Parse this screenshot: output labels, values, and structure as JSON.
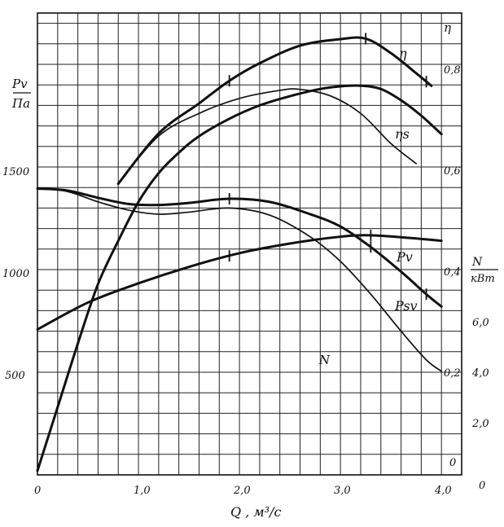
{
  "chart_data": {
    "type": "line",
    "xlabel": "Q , м³/с",
    "x_ticks": [
      "0",
      "1,0",
      "2,0",
      "3,0",
      "4,0"
    ],
    "xlim": [
      0,
      4.2
    ],
    "left_axis": {
      "label_top": "Pv",
      "label_bottom": "Па",
      "ticks": [
        "500",
        "1000",
        "1500"
      ],
      "ylim": [
        0,
        2250
      ]
    },
    "eff_axis": {
      "label": "η",
      "ticks": [
        "0",
        "0,2",
        "0,4",
        "0,6",
        "0,8"
      ],
      "ylim": [
        -0.02,
        0.9
      ]
    },
    "power_axis": {
      "label_top": "N",
      "label_bottom": "кВт",
      "ticks": [
        "0",
        "2,0",
        "4,0",
        "6,0"
      ],
      "ylim": [
        -4.48,
        12.35
      ]
    },
    "grid": true,
    "series": [
      {
        "name": "η",
        "axis": "eff",
        "weight": "heavy",
        "points": [
          [
            0.8,
            0.56
          ],
          [
            1.2,
            0.66
          ],
          [
            1.6,
            0.72
          ],
          [
            1.9,
            0.765
          ],
          [
            2.2,
            0.8
          ],
          [
            2.6,
            0.835
          ],
          [
            3.0,
            0.848
          ],
          [
            3.25,
            0.849
          ],
          [
            3.5,
            0.82
          ],
          [
            3.75,
            0.78
          ],
          [
            3.9,
            0.755
          ]
        ],
        "marks": [
          1.9,
          3.25,
          3.85
        ]
      },
      {
        "name": "ηs",
        "axis": "eff",
        "weight": "light",
        "points": [
          [
            0.8,
            0.56
          ],
          [
            1.2,
            0.655
          ],
          [
            1.6,
            0.7
          ],
          [
            2.0,
            0.73
          ],
          [
            2.4,
            0.746
          ],
          [
            2.6,
            0.748
          ],
          [
            2.9,
            0.735
          ],
          [
            3.2,
            0.7
          ],
          [
            3.5,
            0.64
          ],
          [
            3.75,
            0.6
          ]
        ],
        "marks": []
      },
      {
        "name": "Pv",
        "axis": "pressure",
        "weight": "heavy",
        "points": [
          [
            0,
            1395
          ],
          [
            0.3,
            1385
          ],
          [
            0.6,
            1350
          ],
          [
            0.9,
            1320
          ],
          [
            1.2,
            1315
          ],
          [
            1.5,
            1325
          ],
          [
            1.9,
            1345
          ],
          [
            2.3,
            1330
          ],
          [
            2.7,
            1270
          ],
          [
            3.0,
            1210
          ],
          [
            3.3,
            1110
          ],
          [
            3.6,
            990
          ],
          [
            3.85,
            880
          ],
          [
            4.0,
            820
          ]
        ],
        "marks": [
          1.9,
          3.3,
          3.85
        ]
      },
      {
        "name": "Psv",
        "axis": "pressure",
        "weight": "light",
        "points": [
          [
            0,
            1395
          ],
          [
            0.3,
            1380
          ],
          [
            0.6,
            1330
          ],
          [
            0.9,
            1290
          ],
          [
            1.2,
            1270
          ],
          [
            1.5,
            1280
          ],
          [
            1.9,
            1300
          ],
          [
            2.3,
            1265
          ],
          [
            2.7,
            1160
          ],
          [
            3.0,
            1040
          ],
          [
            3.3,
            880
          ],
          [
            3.6,
            700
          ],
          [
            3.85,
            560
          ],
          [
            4.0,
            505
          ]
        ],
        "marks": []
      },
      {
        "name": "N",
        "axis": "power",
        "weight": "heavy",
        "points": [
          [
            0,
            0.82
          ],
          [
            0.5,
            1.8
          ],
          [
            1.0,
            2.5
          ],
          [
            1.5,
            3.1
          ],
          [
            2.0,
            3.6
          ],
          [
            2.5,
            3.95
          ],
          [
            3.0,
            4.2
          ],
          [
            3.3,
            4.25
          ],
          [
            3.7,
            4.15
          ],
          [
            4.0,
            4.05
          ]
        ],
        "marks": [
          1.9,
          3.3
        ]
      },
      {
        "name": "",
        "axis": "pressure",
        "weight": "heavy",
        "points": [
          [
            0,
            20
          ],
          [
            0.2,
            330
          ],
          [
            0.4,
            640
          ],
          [
            0.6,
            930
          ],
          [
            0.8,
            1140
          ],
          [
            1.0,
            1330
          ],
          [
            1.2,
            1470
          ],
          [
            1.4,
            1570
          ],
          [
            1.6,
            1650
          ],
          [
            1.9,
            1735
          ],
          [
            2.2,
            1800
          ],
          [
            2.5,
            1845
          ],
          [
            2.8,
            1880
          ],
          [
            3.0,
            1893
          ],
          [
            3.2,
            1896
          ],
          [
            3.4,
            1880
          ],
          [
            3.6,
            1825
          ],
          [
            3.8,
            1750
          ],
          [
            4.0,
            1660
          ]
        ],
        "marks": []
      }
    ],
    "series_labels": [
      "η",
      "ηs",
      "Pv",
      "Psv",
      "N"
    ]
  }
}
